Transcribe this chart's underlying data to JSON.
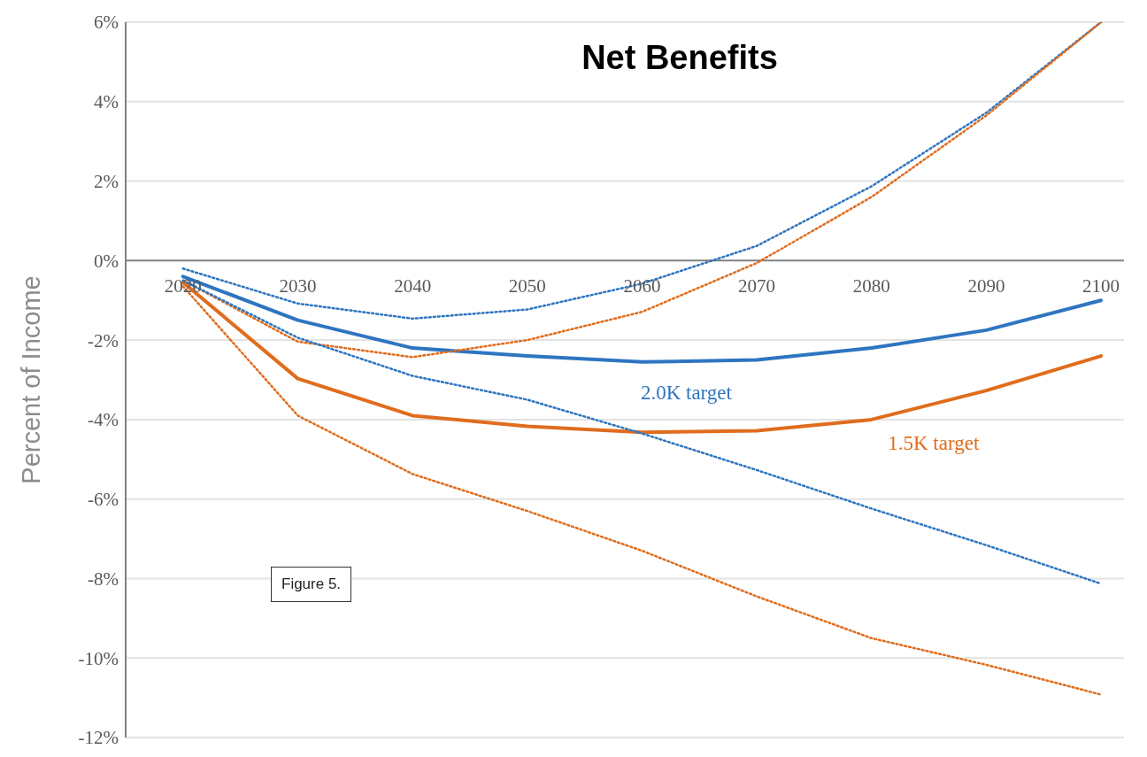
{
  "chart_data": {
    "type": "line",
    "title": "Net Benefits",
    "ylabel": "Percent of Income",
    "x": [
      2020,
      2030,
      2040,
      2050,
      2060,
      2070,
      2080,
      2090,
      2100
    ],
    "series": [
      {
        "name": "2.0K target",
        "color": "#2e75c0",
        "line_style": "solid",
        "values": [
          -0.4,
          -1.5,
          -2.2,
          -2.4,
          -2.55,
          -2.5,
          -2.2,
          -1.75,
          -1.0
        ]
      },
      {
        "name": "1.5K target",
        "color": "#e06c1c",
        "line_style": "solid",
        "values": [
          -0.55,
          -2.97,
          -3.9,
          -4.17,
          -4.32,
          -4.28,
          -4.0,
          -3.27,
          -2.4
        ]
      },
      {
        "color": "#2e75c0",
        "line_style": "dotted",
        "values": [
          -0.2,
          -1.08,
          -1.46,
          -1.23,
          -0.58,
          0.37,
          1.87,
          3.72,
          6.0
        ]
      },
      {
        "color": "#e06c1c",
        "line_style": "dotted",
        "values": [
          -0.5,
          -2.04,
          -2.43,
          -2.0,
          -1.29,
          -0.06,
          1.6,
          3.65,
          6.0
        ]
      },
      {
        "color": "#2e75c0",
        "line_style": "dotted",
        "values": [
          -0.5,
          -1.94,
          -2.9,
          -3.5,
          -4.35,
          -5.27,
          -6.24,
          -7.16,
          -8.13
        ]
      },
      {
        "color": "#e06c1c",
        "line_style": "dotted",
        "values": [
          -0.65,
          -3.9,
          -5.37,
          -6.3,
          -7.3,
          -8.45,
          -9.5,
          -10.17,
          -10.92
        ]
      }
    ],
    "annotations": [
      "Figure 5."
    ],
    "xlim": [
      2015,
      2102
    ],
    "xticks": [
      2020,
      2030,
      2040,
      2050,
      2060,
      2070,
      2080,
      2090,
      2100
    ],
    "ylim": [
      -12,
      6
    ],
    "yticks": [
      {
        "value": -12,
        "label": "-12%"
      },
      {
        "value": -10,
        "label": "-10%"
      },
      {
        "value": -8,
        "label": "-8%"
      },
      {
        "value": -6,
        "label": "-6%"
      },
      {
        "value": -4,
        "label": "-4%"
      },
      {
        "value": -2,
        "label": "-2%"
      },
      {
        "value": 0,
        "label": "0%"
      },
      {
        "value": 2,
        "label": "2%"
      },
      {
        "value": 4,
        "label": "4%"
      },
      {
        "value": 6,
        "label": "6%"
      }
    ],
    "grid": "y",
    "legend": false,
    "marker": "none"
  }
}
